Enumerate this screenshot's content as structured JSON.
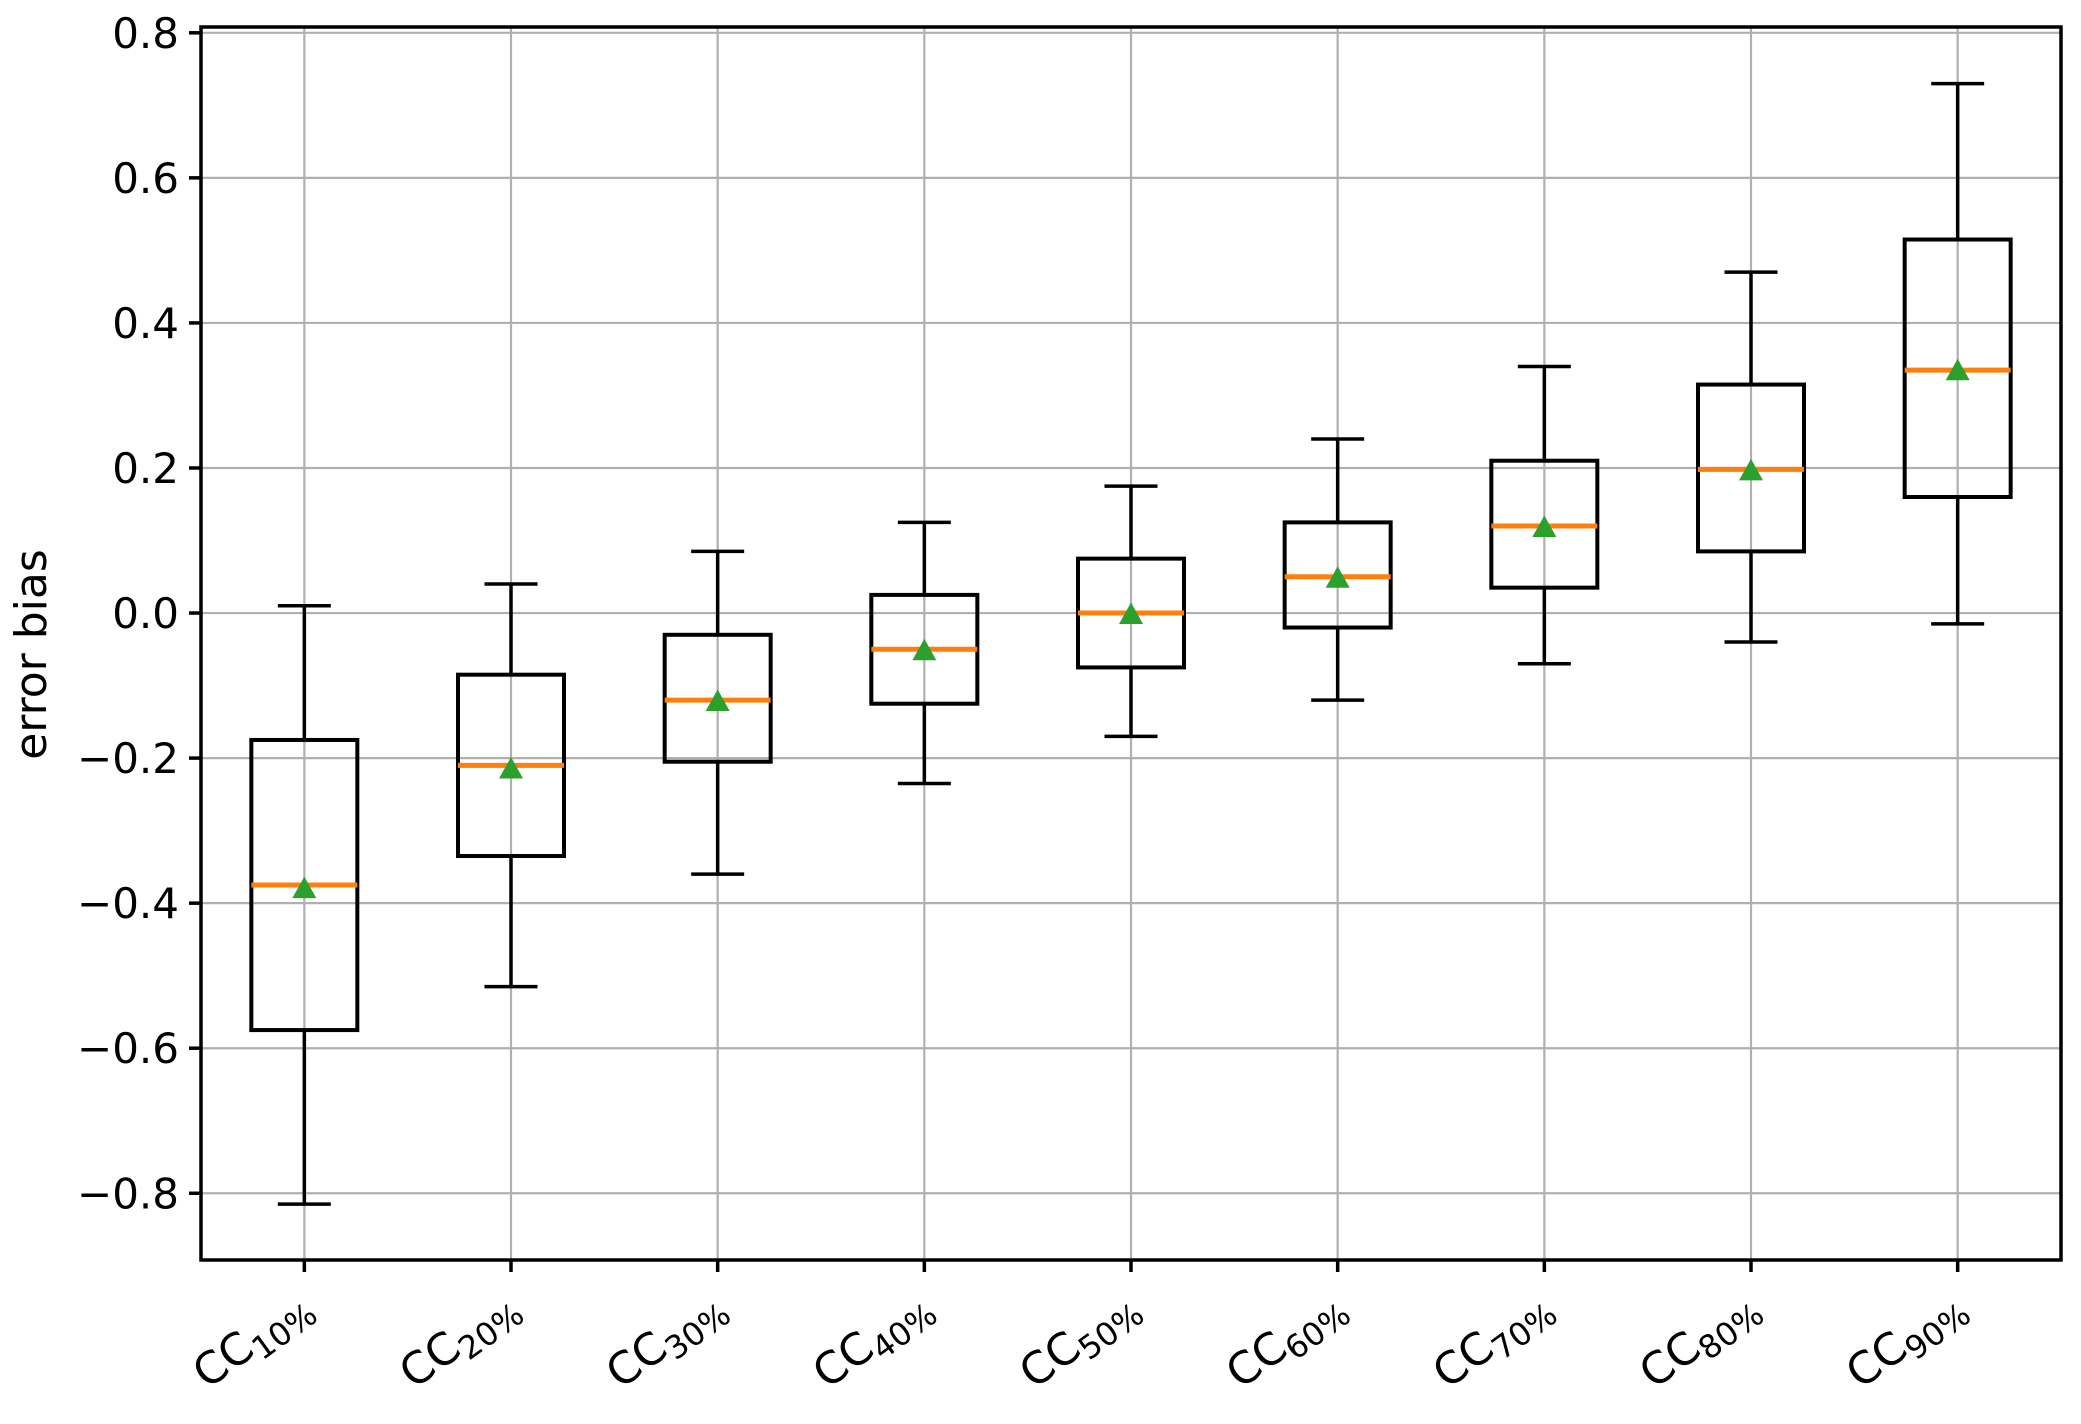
{
  "figure": {
    "background": "#ffffff"
  },
  "chart_data": {
    "type": "boxplot",
    "title": "",
    "xlabel": "",
    "ylabel": "error bias",
    "ylim": [
      -0.892,
      0.808
    ],
    "yticks": [
      0.8,
      0.6,
      0.4,
      0.2,
      0.0,
      -0.2,
      -0.4,
      -0.6,
      -0.8
    ],
    "ytick_labels": [
      "0.8",
      "0.6",
      "0.4",
      "0.2",
      "0.0",
      "−0.2",
      "−0.4",
      "−0.6",
      "−0.8"
    ],
    "grid": true,
    "legend": "none",
    "colors": {
      "median": "#ff7f0e",
      "mean": "#2ca02c",
      "box": "#000000",
      "whisker": "#000000",
      "spine": "#000000",
      "grid": "#b0b0b0",
      "background": "#ffffff"
    },
    "categories": [
      {
        "prefix": "CC",
        "sub": "10%"
      },
      {
        "prefix": "CC",
        "sub": "20%"
      },
      {
        "prefix": "CC",
        "sub": "30%"
      },
      {
        "prefix": "CC",
        "sub": "40%"
      },
      {
        "prefix": "CC",
        "sub": "50%"
      },
      {
        "prefix": "CC",
        "sub": "60%"
      },
      {
        "prefix": "CC",
        "sub": "70%"
      },
      {
        "prefix": "CC",
        "sub": "80%"
      },
      {
        "prefix": "CC",
        "sub": "90%"
      }
    ],
    "boxes": [
      {
        "label": "CC10%",
        "whisker_low": -0.815,
        "q1": -0.575,
        "median": -0.375,
        "mean": -0.38,
        "q3": -0.175,
        "whisker_high": 0.01
      },
      {
        "label": "CC20%",
        "whisker_low": -0.515,
        "q1": -0.335,
        "median": -0.21,
        "mean": -0.215,
        "q3": -0.085,
        "whisker_high": 0.04
      },
      {
        "label": "CC30%",
        "whisker_low": -0.36,
        "q1": -0.205,
        "median": -0.12,
        "mean": -0.122,
        "q3": -0.03,
        "whisker_high": 0.085
      },
      {
        "label": "CC40%",
        "whisker_low": -0.235,
        "q1": -0.125,
        "median": -0.05,
        "mean": -0.052,
        "q3": 0.025,
        "whisker_high": 0.125
      },
      {
        "label": "CC50%",
        "whisker_low": -0.17,
        "q1": -0.075,
        "median": 0.0,
        "mean": -0.002,
        "q3": 0.075,
        "whisker_high": 0.175
      },
      {
        "label": "CC60%",
        "whisker_low": -0.12,
        "q1": -0.02,
        "median": 0.05,
        "mean": 0.048,
        "q3": 0.125,
        "whisker_high": 0.24
      },
      {
        "label": "CC70%",
        "whisker_low": -0.07,
        "q1": 0.035,
        "median": 0.12,
        "mean": 0.118,
        "q3": 0.21,
        "whisker_high": 0.34
      },
      {
        "label": "CC80%",
        "whisker_low": -0.04,
        "q1": 0.085,
        "median": 0.198,
        "mean": 0.196,
        "q3": 0.315,
        "whisker_high": 0.47
      },
      {
        "label": "CC90%",
        "whisker_low": -0.015,
        "q1": 0.16,
        "median": 0.335,
        "mean": 0.334,
        "q3": 0.515,
        "whisker_high": 0.73
      }
    ]
  }
}
